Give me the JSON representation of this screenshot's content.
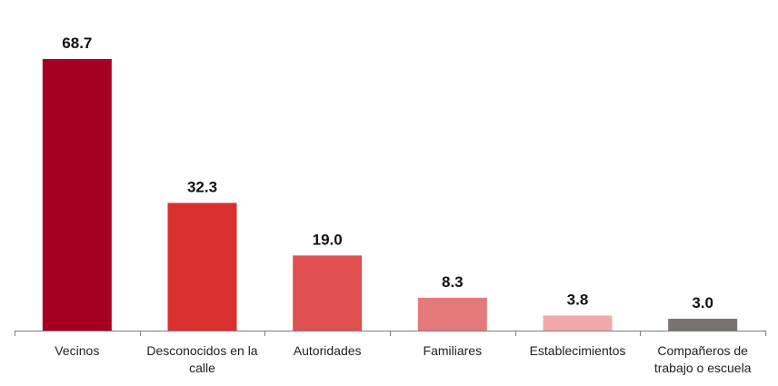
{
  "chart_data": {
    "type": "bar",
    "categories": [
      [
        "Vecinos"
      ],
      [
        "Desconocidos en la",
        "calle"
      ],
      [
        "Autoridades"
      ],
      [
        "Familiares"
      ],
      [
        "Establecimientos"
      ],
      [
        "Compañeros de",
        "trabajo o escuela"
      ]
    ],
    "values": [
      68.7,
      32.3,
      19.0,
      8.3,
      3.8,
      3.0
    ],
    "value_labels": [
      "68.7",
      "32.3",
      "19.0",
      "8.3",
      "3.8",
      "3.0"
    ],
    "colors": [
      "#a50021",
      "#d93030",
      "#de5050",
      "#e57a7a",
      "#f0a8a8",
      "#7a7272"
    ],
    "ylim": [
      0,
      68.7
    ],
    "grid": false,
    "legend": "none"
  }
}
